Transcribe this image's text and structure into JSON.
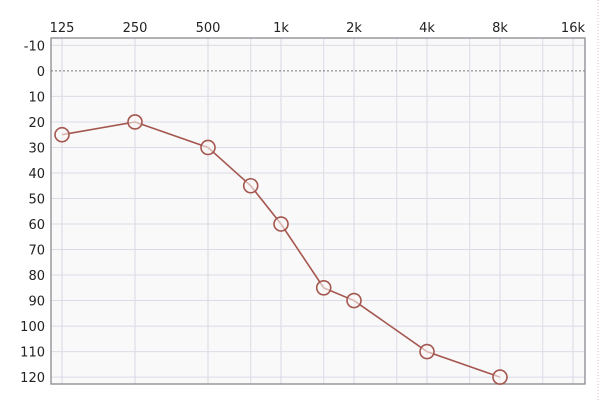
{
  "chart_data": {
    "type": "line",
    "title": "",
    "xlabel": "",
    "ylabel": "",
    "x_scale": "log2",
    "y_inverted": true,
    "x_ticks": [
      {
        "value": 125,
        "label": "125"
      },
      {
        "value": 250,
        "label": "250"
      },
      {
        "value": 500,
        "label": "500"
      },
      {
        "value": 1000,
        "label": "1k"
      },
      {
        "value": 2000,
        "label": "2k"
      },
      {
        "value": 4000,
        "label": "4k"
      },
      {
        "value": 8000,
        "label": "8k"
      },
      {
        "value": 16000,
        "label": "16k"
      }
    ],
    "x_minor_gridlines": [
      750,
      1500,
      3000,
      6000,
      12000
    ],
    "y_ticks": [
      -10,
      0,
      10,
      20,
      30,
      40,
      50,
      60,
      70,
      80,
      90,
      100,
      110,
      120
    ],
    "ylim": [
      -12.9,
      122.7
    ],
    "reference_line": 0,
    "grid": true,
    "series": [
      {
        "x": [
          125,
          250,
          500,
          750,
          1000,
          1500,
          2000,
          4000,
          8000
        ],
        "y": [
          25,
          20,
          30,
          45,
          60,
          85,
          90,
          110,
          120
        ],
        "marker": "circle",
        "color": "#a4574f"
      }
    ]
  },
  "colors": {
    "grid": "#dcdce6",
    "plot_bg": "#f9f9fa",
    "frame": "#8a8a90"
  }
}
